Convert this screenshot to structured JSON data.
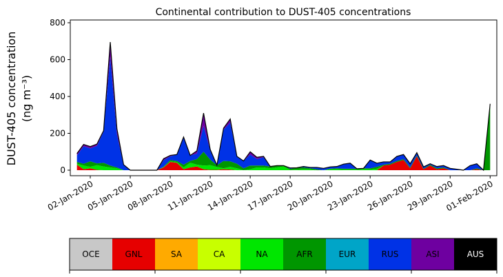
{
  "chart_data": {
    "type": "area",
    "stacked": true,
    "title": "Continental contribution to DUST-405 concentrations",
    "ylabel_line1": "DUST-405 concentration",
    "ylabel_line2": "(ng m⁻³)",
    "xlabel": "",
    "ylim": [
      -30,
      815
    ],
    "yticks": [
      0,
      200,
      400,
      600,
      800
    ],
    "ytick_labels": [
      "0",
      "200",
      "400",
      "600",
      "800"
    ],
    "xlim": [
      -0.5,
      31.5
    ],
    "xticks": [
      1,
      4,
      7,
      10,
      13,
      16,
      19,
      22,
      25,
      28,
      31
    ],
    "xtick_labels": [
      "02-Jan-2020",
      "05-Jan-2020",
      "08-Jan-2020",
      "11-Jan-2020",
      "14-Jan-2020",
      "17-Jan-2020",
      "20-Jan-2020",
      "23-Jan-2020",
      "26-Jan-2020",
      "29-Jan-2020",
      "01-Feb-2020"
    ],
    "grid": false,
    "x": [
      0,
      0.5,
      1,
      1.5,
      2,
      2.5,
      3,
      3.5,
      4,
      4.5,
      5,
      5.5,
      6,
      6.5,
      7,
      7.5,
      8,
      8.5,
      9,
      9.5,
      10,
      10.5,
      11,
      11.5,
      12,
      12.5,
      13,
      13.5,
      14,
      14.5,
      15,
      15.5,
      16,
      16.5,
      17,
      17.5,
      18,
      18.5,
      19,
      19.5,
      20,
      20.5,
      21,
      21.5,
      22,
      22.5,
      23,
      23.5,
      24,
      24.5,
      25,
      25.5,
      26,
      26.5,
      27,
      27.5,
      28,
      28.5,
      29,
      29.5,
      30,
      30.5,
      31
    ],
    "series": [
      {
        "name": "OCE",
        "color": "#c8c8c8",
        "values": [
          0,
          0,
          0,
          0,
          0,
          0,
          0,
          0,
          0,
          0,
          0,
          0,
          0,
          0,
          0,
          0,
          0,
          0,
          0,
          0,
          0,
          0,
          0,
          0,
          0,
          0,
          0,
          0,
          0,
          0,
          0,
          0,
          0,
          0,
          0,
          0,
          0,
          0,
          0,
          0,
          0,
          0,
          0,
          0,
          0,
          0,
          0,
          0,
          0,
          0,
          0,
          0,
          0,
          0,
          0,
          0,
          0,
          0,
          0,
          0,
          0,
          0,
          0
        ]
      },
      {
        "name": "GNL",
        "color": "#e60000",
        "values": [
          30,
          5,
          10,
          2,
          0,
          0,
          0,
          0,
          0,
          0,
          0,
          0,
          0,
          15,
          45,
          40,
          5,
          15,
          20,
          5,
          2,
          2,
          5,
          3,
          0,
          0,
          0,
          0,
          0,
          0,
          0,
          0,
          0,
          0,
          0,
          0,
          0,
          0,
          0,
          0,
          0,
          0,
          0,
          0,
          0,
          0,
          25,
          30,
          45,
          55,
          10,
          75,
          5,
          25,
          5,
          10,
          0,
          0,
          0,
          0,
          5,
          0,
          0
        ]
      },
      {
        "name": "SA",
        "color": "#ffaa00",
        "values": [
          0,
          0,
          0,
          0,
          0,
          0,
          0,
          0,
          0,
          0,
          0,
          0,
          0,
          0,
          0,
          0,
          0,
          0,
          0,
          0,
          0,
          0,
          0,
          0,
          0,
          0,
          0,
          0,
          0,
          0,
          0,
          0,
          0,
          0,
          0,
          0,
          0,
          0,
          0,
          0,
          0,
          0,
          0,
          0,
          0,
          0,
          0,
          0,
          0,
          0,
          0,
          0,
          0,
          0,
          0,
          0,
          0,
          0,
          0,
          0,
          0,
          0,
          0
        ]
      },
      {
        "name": "CA",
        "color": "#c8ff00",
        "values": [
          0,
          0,
          0,
          0,
          0,
          0,
          0,
          0,
          0,
          0,
          0,
          0,
          0,
          0,
          0,
          0,
          0,
          0,
          0,
          0,
          0,
          0,
          0,
          0,
          0,
          0,
          0,
          0,
          0,
          0,
          0,
          0,
          0,
          0,
          0,
          0,
          0,
          0,
          0,
          0,
          0,
          0,
          0,
          0,
          0,
          0,
          0,
          0,
          0,
          0,
          0,
          0,
          0,
          0,
          0,
          0,
          0,
          0,
          0,
          0,
          0,
          0,
          0
        ]
      },
      {
        "name": "NA",
        "color": "#00e600",
        "values": [
          5,
          20,
          8,
          25,
          20,
          15,
          10,
          0,
          0,
          0,
          0,
          0,
          0,
          2,
          3,
          5,
          10,
          25,
          10,
          20,
          25,
          15,
          5,
          15,
          10,
          0,
          5,
          15,
          15,
          10,
          15,
          20,
          2,
          3,
          5,
          5,
          0,
          0,
          5,
          5,
          3,
          3,
          3,
          5,
          5,
          8,
          0,
          0,
          0,
          0,
          0,
          0,
          0,
          0,
          0,
          0,
          0,
          0,
          0,
          0,
          0,
          0,
          0
        ]
      },
      {
        "name": "AFR",
        "color": "#009600",
        "values": [
          10,
          10,
          30,
          10,
          20,
          10,
          5,
          0,
          0,
          0,
          0,
          0,
          0,
          2,
          7,
          5,
          15,
          10,
          30,
          75,
          30,
          10,
          40,
          30,
          25,
          10,
          20,
          10,
          10,
          10,
          10,
          5,
          5,
          10,
          10,
          5,
          5,
          0,
          3,
          5,
          5,
          5,
          5,
          5,
          5,
          10,
          5,
          5,
          5,
          5,
          5,
          5,
          3,
          5,
          5,
          5,
          0,
          0,
          0,
          0,
          5,
          0,
          360
        ]
      },
      {
        "name": "EUR",
        "color": "#00a5c8",
        "values": [
          0,
          0,
          0,
          0,
          0,
          0,
          0,
          0,
          0,
          0,
          0,
          0,
          0,
          0,
          0,
          0,
          0,
          0,
          0,
          0,
          0,
          0,
          0,
          0,
          0,
          0,
          0,
          0,
          0,
          0,
          0,
          0,
          0,
          0,
          0,
          0,
          0,
          0,
          0,
          0,
          0,
          0,
          0,
          0,
          0,
          0,
          0,
          0,
          0,
          0,
          0,
          0,
          0,
          0,
          0,
          0,
          0,
          0,
          0,
          0,
          0,
          0,
          0
        ]
      },
      {
        "name": "RUS",
        "color": "#0032e6",
        "values": [
          35,
          95,
          70,
          95,
          170,
          590,
          180,
          30,
          0,
          0,
          0,
          0,
          0,
          35,
          20,
          35,
          145,
          30,
          30,
          140,
          50,
          0,
          170,
          210,
          40,
          40,
          60,
          35,
          45,
          0,
          0,
          0,
          5,
          0,
          5,
          5,
          10,
          10,
          10,
          10,
          25,
          30,
          0,
          0,
          45,
          20,
          15,
          10,
          25,
          25,
          20,
          15,
          10,
          5,
          10,
          10,
          10,
          5,
          0,
          25,
          25,
          0,
          0
        ]
      },
      {
        "name": "ASI",
        "color": "#6e00a0",
        "values": [
          10,
          10,
          10,
          10,
          5,
          80,
          30,
          0,
          0,
          0,
          0,
          0,
          0,
          8,
          5,
          0,
          5,
          0,
          15,
          70,
          5,
          0,
          8,
          20,
          0,
          0,
          15,
          10,
          5,
          0,
          0,
          0,
          0,
          0,
          0,
          0,
          0,
          0,
          0,
          0,
          0,
          0,
          0,
          0,
          0,
          0,
          0,
          0,
          0,
          0,
          0,
          0,
          0,
          0,
          0,
          0,
          0,
          0,
          0,
          0,
          0,
          0,
          0
        ]
      },
      {
        "name": "AUS",
        "color": "#000000",
        "values": [
          0,
          0,
          0,
          0,
          0,
          0,
          0,
          0,
          0,
          0,
          0,
          0,
          0,
          0,
          0,
          0,
          0,
          0,
          0,
          0,
          0,
          0,
          0,
          0,
          0,
          0,
          0,
          0,
          0,
          0,
          0,
          0,
          0,
          0,
          0,
          0,
          0,
          0,
          0,
          0,
          0,
          0,
          0,
          0,
          0,
          0,
          0,
          0,
          0,
          0,
          0,
          0,
          0,
          0,
          0,
          0,
          0,
          0,
          0,
          0,
          0,
          0,
          0
        ]
      }
    ]
  },
  "legend": {
    "placement": "bottom",
    "items": [
      {
        "label": "OCE",
        "color": "#c8c8c8"
      },
      {
        "label": "GNL",
        "color": "#e60000"
      },
      {
        "label": "SA",
        "color": "#ffaa00"
      },
      {
        "label": "CA",
        "color": "#c8ff00"
      },
      {
        "label": "NA",
        "color": "#00e600"
      },
      {
        "label": "AFR",
        "color": "#009600"
      },
      {
        "label": "EUR",
        "color": "#00a5c8"
      },
      {
        "label": "RUS",
        "color": "#0032e6"
      },
      {
        "label": "ASI",
        "color": "#6e00a0"
      },
      {
        "label": "AUS",
        "color": "#000000"
      }
    ]
  }
}
